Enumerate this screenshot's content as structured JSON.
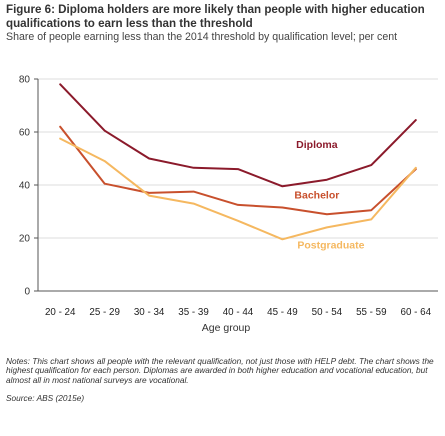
{
  "figure": {
    "title": "Figure 6: Diploma holders are more likely than people with higher education qualifications to earn less than the threshold",
    "subtitle": "Share of people earning less than the 2014 threshold by qualification level; per cent",
    "notes": "Notes: This chart shows all people with the relevant qualification, not just those with HELP debt. The chart shows the highest qualification for each person. Diplomas are awarded in both higher education and vocational education, but almost all in most national surveys are vocational.",
    "source": "Source: ABS (2015e)"
  },
  "chart_data": {
    "type": "line",
    "xlabel": "Age group",
    "ylabel": "",
    "categories": [
      "20 - 24",
      "25 - 29",
      "30 - 34",
      "35 - 39",
      "40 - 44",
      "45 - 49",
      "50 - 54",
      "55 - 59",
      "60 - 64"
    ],
    "ylim": [
      0,
      80
    ],
    "yticks": [
      0,
      20,
      40,
      60,
      80
    ],
    "grid": true,
    "series": [
      {
        "name": "Diploma",
        "color": "#8b1a2b",
        "values": [
          78,
          60.5,
          50,
          46.5,
          46,
          39.5,
          42,
          47.5,
          64.5
        ]
      },
      {
        "name": "Bachelor",
        "color": "#c8502d",
        "values": [
          62,
          40.5,
          37,
          37.5,
          32.5,
          31.5,
          29,
          30.5,
          46
        ]
      },
      {
        "name": "Postgraduate",
        "color": "#f5b860",
        "values": [
          57.5,
          49,
          36,
          33,
          26.5,
          19.5,
          24,
          27,
          46.5
        ]
      }
    ]
  }
}
